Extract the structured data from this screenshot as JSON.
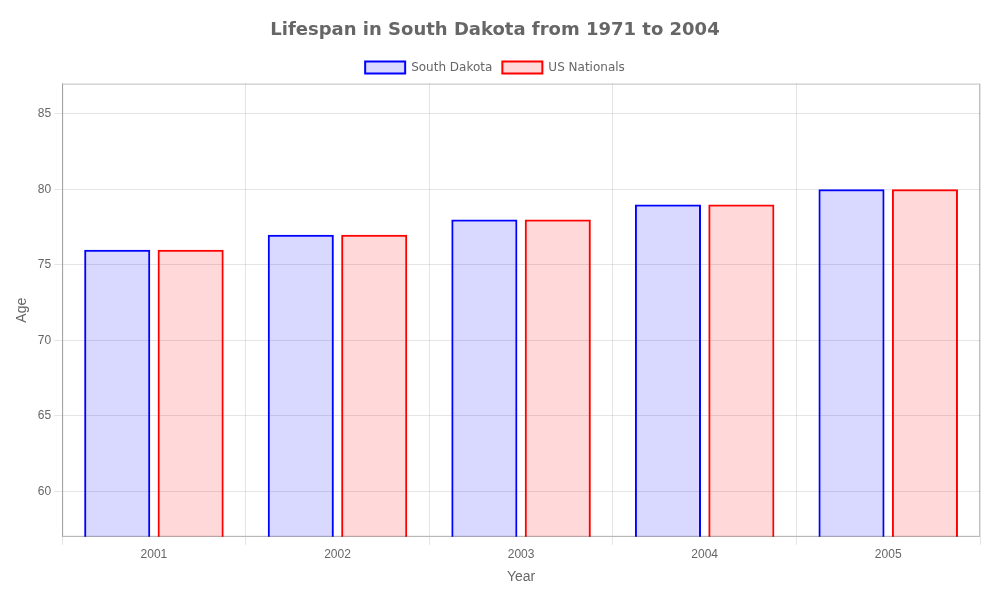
{
  "chart_data": {
    "type": "bar",
    "title": "Lifespan in South Dakota from 1971 to 2004",
    "x_label": "Year",
    "y_label": "Age",
    "categories": [
      "2001",
      "2002",
      "2003",
      "2004",
      "2005"
    ],
    "series": [
      {
        "name": "South Dakota",
        "color": "#0000ff",
        "values": [
          76,
          77,
          78,
          79,
          80
        ]
      },
      {
        "name": "US Nationals",
        "color": "#ff0000",
        "values": [
          76,
          77,
          78,
          79,
          80
        ]
      }
    ],
    "ylim": [
      57,
      87
    ],
    "yticks": [
      60,
      65,
      70,
      75,
      80,
      85
    ],
    "grid": true,
    "legend": "top"
  }
}
